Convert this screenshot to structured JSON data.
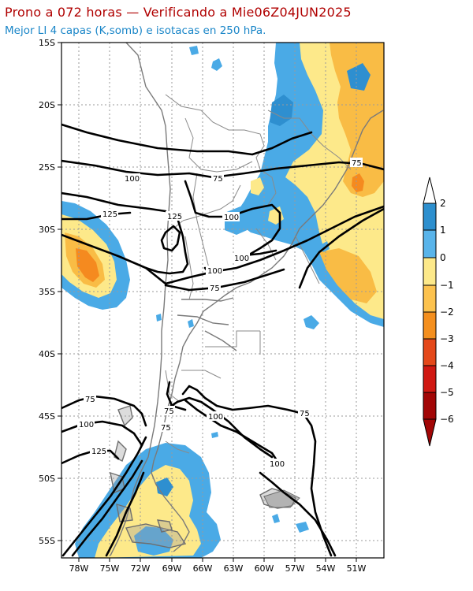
{
  "header": {
    "title": "Prono a 072 horas — Verificando a Mie06Z04JUN2025",
    "subtitle": "Mejor LI 4 capas (K,somb) e isotacas en 250 hPa."
  },
  "map": {
    "lat_labels": [
      "15S",
      "20S",
      "25S",
      "30S",
      "35S",
      "40S",
      "45S",
      "50S",
      "55S"
    ],
    "lon_labels": [
      "78W",
      "75W",
      "72W",
      "69W",
      "66W",
      "63W",
      "60W",
      "57W",
      "54W",
      "51W"
    ],
    "isotach_labels": [
      "75",
      "100",
      "125",
      "75",
      "100",
      "125",
      "100",
      "100",
      "75",
      "75",
      "100",
      "75",
      "100",
      "125",
      "75",
      "75",
      "100",
      "75",
      "100"
    ]
  },
  "legend": {
    "labels": [
      "2",
      "1",
      "0",
      "−1",
      "−2",
      "−3",
      "−4",
      "−5",
      "−6"
    ],
    "colors": [
      "#2d8fce",
      "#59b4ea",
      "#fde98a",
      "#fcc24e",
      "#f48f1e",
      "#e4481a",
      "#d01812",
      "#a20606"
    ]
  },
  "colors": {
    "blue": "#4aaae6",
    "darkblue": "#2e8fd0",
    "yellow": "#fde98a",
    "orange": "#f9bc45",
    "darkorange": "#f58a1f",
    "red": "#e0431a"
  }
}
